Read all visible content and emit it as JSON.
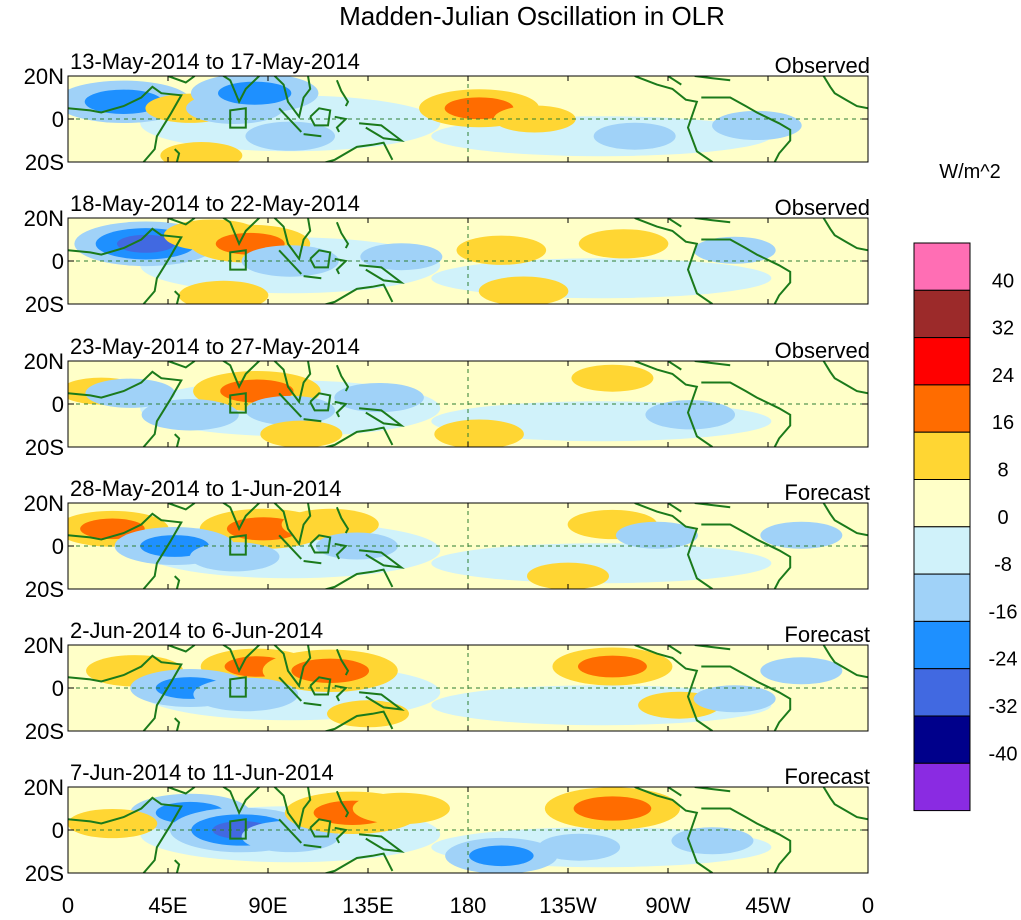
{
  "chart_data": {
    "type": "heatmap",
    "title": "Madden-Julian Oscillation in OLR",
    "units": "W/m^2",
    "x_ticks": [
      "0",
      "45E",
      "90E",
      "135E",
      "180",
      "135W",
      "90W",
      "45W",
      "0"
    ],
    "y_ticks": [
      "20N",
      "0",
      "20S"
    ],
    "colorbar": {
      "labels": [
        "40",
        "32",
        "24",
        "16",
        "8",
        "0",
        "-8",
        "-16",
        "-24",
        "-32",
        "-40"
      ],
      "colors": [
        "#ff6eb4",
        "#9c2a2a",
        "#ff0000",
        "#ff6c00",
        "#ffd633",
        "#ffffc8",
        "#d0f2fa",
        "#a0d2f8",
        "#1e90ff",
        "#4169e1",
        "#00008b",
        "#8a2be2"
      ]
    },
    "panels": [
      {
        "period": "13-May-2014 to 17-May-2014",
        "status": "Observed",
        "anomalies": [
          {
            "lon": 25,
            "lat": 8,
            "value": -24
          },
          {
            "lon": 55,
            "lat": 5,
            "value": 12
          },
          {
            "lon": 75,
            "lat": 5,
            "value": -14
          },
          {
            "lon": 84,
            "lat": 12,
            "value": -22
          },
          {
            "lon": 100,
            "lat": -8,
            "value": -12
          },
          {
            "lon": 60,
            "lat": -17,
            "value": 10
          },
          {
            "lon": 185,
            "lat": 5,
            "value": 20
          },
          {
            "lon": 210,
            "lat": 0,
            "value": 10
          },
          {
            "lon": 255,
            "lat": -8,
            "value": -10
          },
          {
            "lon": 310,
            "lat": -3,
            "value": -12
          }
        ]
      },
      {
        "period": "18-May-2014 to 22-May-2014",
        "status": "Observed",
        "anomalies": [
          {
            "lon": 35,
            "lat": 8,
            "value": -26
          },
          {
            "lon": 65,
            "lat": 12,
            "value": 14
          },
          {
            "lon": 82,
            "lat": 8,
            "value": 20
          },
          {
            "lon": 100,
            "lat": 0,
            "value": -14
          },
          {
            "lon": 150,
            "lat": 2,
            "value": -10
          },
          {
            "lon": 70,
            "lat": -16,
            "value": 12
          },
          {
            "lon": 195,
            "lat": 5,
            "value": 12
          },
          {
            "lon": 205,
            "lat": -14,
            "value": 12
          },
          {
            "lon": 250,
            "lat": 8,
            "value": 12
          },
          {
            "lon": 300,
            "lat": 5,
            "value": -10
          }
        ]
      },
      {
        "period": "23-May-2014 to 27-May-2014",
        "status": "Observed",
        "anomalies": [
          {
            "lon": 15,
            "lat": 6,
            "value": 10
          },
          {
            "lon": 28,
            "lat": 5,
            "value": -12
          },
          {
            "lon": 85,
            "lat": 6,
            "value": 22
          },
          {
            "lon": 55,
            "lat": -5,
            "value": -14
          },
          {
            "lon": 100,
            "lat": -3,
            "value": -12
          },
          {
            "lon": 105,
            "lat": -14,
            "value": 10
          },
          {
            "lon": 140,
            "lat": 3,
            "value": -12
          },
          {
            "lon": 185,
            "lat": -14,
            "value": 12
          },
          {
            "lon": 245,
            "lat": 12,
            "value": 10
          },
          {
            "lon": 280,
            "lat": -5,
            "value": -12
          }
        ]
      },
      {
        "period": "28-May-2014 to 1-Jun-2014",
        "status": "Forecast",
        "anomalies": [
          {
            "lon": 20,
            "lat": 8,
            "value": 18
          },
          {
            "lon": 88,
            "lat": 8,
            "value": 22
          },
          {
            "lon": 118,
            "lat": 10,
            "value": 14
          },
          {
            "lon": 48,
            "lat": 0,
            "value": -20
          },
          {
            "lon": 75,
            "lat": -5,
            "value": -12
          },
          {
            "lon": 130,
            "lat": 0,
            "value": -10
          },
          {
            "lon": 245,
            "lat": 10,
            "value": 12
          },
          {
            "lon": 225,
            "lat": -14,
            "value": 10
          },
          {
            "lon": 265,
            "lat": 5,
            "value": -10
          },
          {
            "lon": 330,
            "lat": 5,
            "value": -10
          }
        ]
      },
      {
        "period": "2-Jun-2014 to 6-Jun-2014",
        "status": "Forecast",
        "anomalies": [
          {
            "lon": 30,
            "lat": 8,
            "value": 14
          },
          {
            "lon": 85,
            "lat": 10,
            "value": 18
          },
          {
            "lon": 118,
            "lat": 8,
            "value": 24
          },
          {
            "lon": 55,
            "lat": 0,
            "value": -20
          },
          {
            "lon": 80,
            "lat": -3,
            "value": -16
          },
          {
            "lon": 135,
            "lat": -12,
            "value": 10
          },
          {
            "lon": 245,
            "lat": 10,
            "value": 20
          },
          {
            "lon": 275,
            "lat": -8,
            "value": 10
          },
          {
            "lon": 300,
            "lat": -5,
            "value": -10
          },
          {
            "lon": 330,
            "lat": 8,
            "value": -10
          }
        ]
      },
      {
        "period": "7-Jun-2014 to 11-Jun-2014",
        "status": "Forecast",
        "anomalies": [
          {
            "lon": 55,
            "lat": 8,
            "value": -20
          },
          {
            "lon": 78,
            "lat": 0,
            "value": -26
          },
          {
            "lon": 100,
            "lat": -3,
            "value": -14
          },
          {
            "lon": 128,
            "lat": 8,
            "value": 24
          },
          {
            "lon": 150,
            "lat": 10,
            "value": 14
          },
          {
            "lon": 20,
            "lat": 3,
            "value": 12
          },
          {
            "lon": 245,
            "lat": 10,
            "value": 24
          },
          {
            "lon": 195,
            "lat": -12,
            "value": -18
          },
          {
            "lon": 230,
            "lat": -8,
            "value": -10
          },
          {
            "lon": 290,
            "lat": -5,
            "value": -10
          }
        ]
      }
    ]
  }
}
